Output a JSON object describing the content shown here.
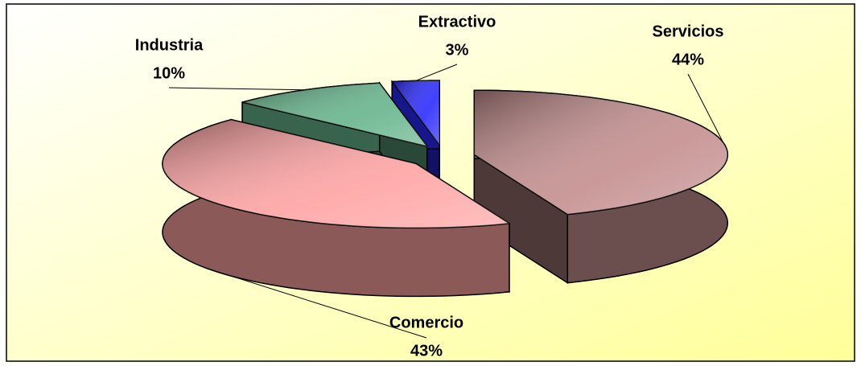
{
  "chart_data": {
    "type": "pie",
    "categories": [
      "Servicios",
      "Comercio",
      "Industria",
      "Extractivo"
    ],
    "values": [
      44,
      43,
      10,
      3
    ],
    "value_labels": [
      "44%",
      "43%",
      "10%",
      "3%"
    ],
    "colors": [
      "#c48e8e",
      "#ffa3a3",
      "#66b58c",
      "#2b2bff"
    ]
  }
}
